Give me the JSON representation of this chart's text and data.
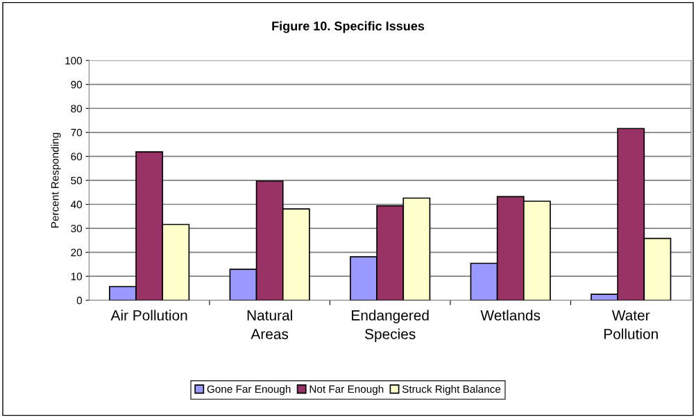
{
  "chart_data": {
    "type": "bar",
    "title": "Figure 10. Specific Issues",
    "ylabel": "Percent Responding",
    "categories": [
      "Air Pollution",
      "Natural\nAreas",
      "Endangered\nSpecies",
      "Wetlands",
      "Water\nPollution"
    ],
    "series": [
      {
        "name": "Gone Far Enough",
        "color": "#9999ff",
        "values": [
          5.7,
          12.9,
          18.1,
          15.4,
          2.5
        ]
      },
      {
        "name": "Not Far Enough",
        "color": "#993366",
        "values": [
          61.9,
          49.7,
          39.4,
          43.2,
          71.6
        ]
      },
      {
        "name": "Struck Right Balance",
        "color": "#ffffcc",
        "values": [
          31.6,
          38.1,
          42.6,
          41.3,
          25.8
        ]
      }
    ],
    "ylim": [
      0,
      100
    ],
    "yticks": [
      0,
      10,
      20,
      30,
      40,
      50,
      60,
      70,
      80,
      90,
      100
    ],
    "grid": "y",
    "legend": "bottom"
  }
}
